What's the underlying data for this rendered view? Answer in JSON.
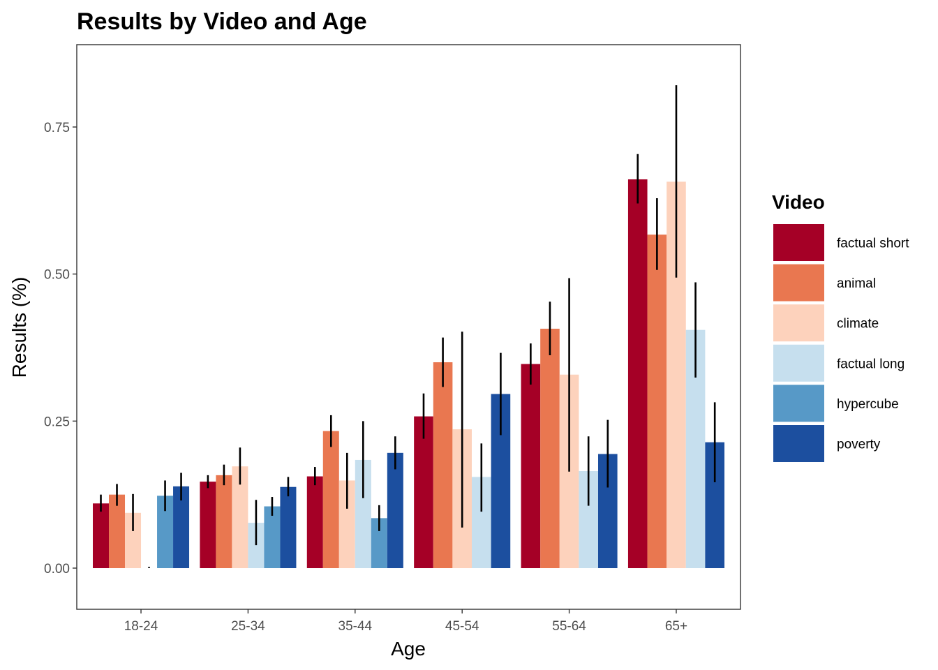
{
  "chart_data": {
    "type": "bar",
    "title": "Results by Video and Age",
    "xlabel": "Age",
    "ylabel": "Results (%)",
    "ylim": [
      -0.07,
      0.89
    ],
    "yticks": [
      0.0,
      0.25,
      0.5,
      0.75
    ],
    "ytick_labels": [
      "0.00",
      "0.25",
      "0.50",
      "0.75"
    ],
    "grid": false,
    "legend_title": "Video",
    "legend_position": "right",
    "categories": [
      "18-24",
      "25-34",
      "35-44",
      "45-54",
      "55-64",
      "65+"
    ],
    "series": [
      {
        "name": "factual short",
        "color": "#a50026",
        "values": [
          0.11,
          0.147,
          0.156,
          0.258,
          0.347,
          0.661
        ],
        "err_low": [
          0.096,
          0.136,
          0.141,
          0.22,
          0.312,
          0.62
        ],
        "err_high": [
          0.125,
          0.158,
          0.172,
          0.297,
          0.382,
          0.704
        ]
      },
      {
        "name": "animal",
        "color": "#e97750",
        "values": [
          0.125,
          0.158,
          0.233,
          0.35,
          0.407,
          0.567
        ],
        "err_low": [
          0.106,
          0.141,
          0.206,
          0.308,
          0.362,
          0.507
        ],
        "err_high": [
          0.143,
          0.176,
          0.26,
          0.392,
          0.453,
          0.629
        ]
      },
      {
        "name": "climate",
        "color": "#fdd2bc",
        "values": [
          0.094,
          0.173,
          0.149,
          0.236,
          0.329,
          0.657
        ],
        "err_low": [
          0.063,
          0.142,
          0.101,
          0.069,
          0.164,
          0.494
        ],
        "err_high": [
          0.126,
          0.205,
          0.196,
          0.402,
          0.493,
          0.821
        ]
      },
      {
        "name": "factual long",
        "color": "#c6dfee",
        "values": [
          0.0,
          0.077,
          0.184,
          0.155,
          0.165,
          0.405
        ],
        "err_low": [
          0.0,
          0.039,
          0.119,
          0.096,
          0.106,
          0.324
        ],
        "err_high": [
          0.002,
          0.116,
          0.25,
          0.212,
          0.224,
          0.486
        ]
      },
      {
        "name": "hypercube",
        "color": "#5799c7",
        "values": [
          0.123,
          0.105,
          0.085,
          null,
          null,
          null
        ],
        "err_low": [
          0.097,
          0.089,
          0.063,
          null,
          null,
          null
        ],
        "err_high": [
          0.149,
          0.121,
          0.107,
          null,
          null,
          null
        ]
      },
      {
        "name": "poverty",
        "color": "#1c4f9f",
        "values": [
          0.139,
          0.138,
          0.196,
          0.296,
          0.194,
          0.214
        ],
        "err_low": [
          0.115,
          0.122,
          0.168,
          0.226,
          0.137,
          0.146
        ],
        "err_high": [
          0.162,
          0.155,
          0.224,
          0.366,
          0.252,
          0.282
        ]
      }
    ]
  }
}
